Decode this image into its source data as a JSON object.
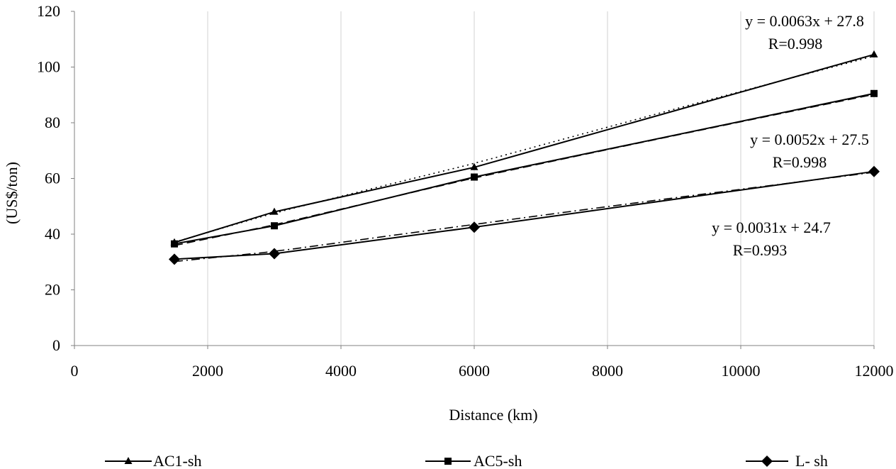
{
  "chart_data": {
    "type": "line",
    "xlabel": "Distance (km)",
    "ylabel": "(US$/ton)",
    "xlim": [
      0,
      12000
    ],
    "ylim": [
      0,
      120
    ],
    "xticks": [
      0,
      2000,
      4000,
      6000,
      8000,
      10000,
      12000
    ],
    "yticks": [
      0,
      20,
      40,
      60,
      80,
      100,
      120
    ],
    "xtick_labels": [
      "0",
      "2000",
      "4000",
      "6000",
      "8000",
      "10000",
      "12000"
    ],
    "ytick_labels": [
      "0",
      "20",
      "40",
      "60",
      "80",
      "100",
      "120"
    ],
    "grid": "vertical",
    "legend_position": "bottom",
    "series": [
      {
        "name": "AC1-sh",
        "marker": "triangle",
        "x": [
          1500,
          3000,
          6000,
          12000
        ],
        "values": [
          37,
          48,
          64,
          104.5
        ],
        "trendline": {
          "slope": 0.0063,
          "intercept": 27.8,
          "style": "dotted"
        }
      },
      {
        "name": "AC5-sh",
        "marker": "square",
        "x": [
          1500,
          3000,
          6000,
          12000
        ],
        "values": [
          36.5,
          43,
          60.5,
          90.5
        ],
        "trendline": {
          "slope": 0.0052,
          "intercept": 27.5,
          "style": "dashed"
        }
      },
      {
        "name": "L- sh",
        "marker": "diamond",
        "x": [
          1500,
          3000,
          6000,
          12000
        ],
        "values": [
          31,
          33,
          42.5,
          62.5
        ],
        "trendline": {
          "slope": 0.0031,
          "intercept": 24.7,
          "style": "dash-dot"
        }
      }
    ],
    "annotations": [
      {
        "line1": "y = 0.0063x + 27.8",
        "line2": "R=0.998"
      },
      {
        "line1": "y = 0.0052x + 27.5",
        "line2": "R=0.998"
      },
      {
        "line1": "y = 0.0031x + 24.7",
        "line2": "R=0.993"
      }
    ],
    "colors": {
      "line": "#000000",
      "grid": "#d0d0d0",
      "axis": "#808080"
    }
  }
}
